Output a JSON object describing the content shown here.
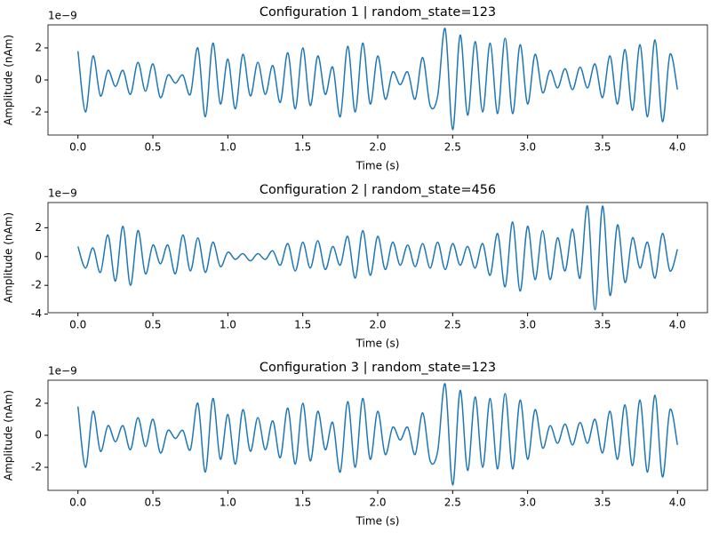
{
  "chart_data": [
    {
      "type": "line",
      "title": "Configuration 1 | random_state=123",
      "x_label": "Time (s)",
      "y_label": "Amplitude (nAm)",
      "y_offset_label": "1e−9",
      "x": [
        0,
        0.05,
        0.1,
        0.15,
        0.2,
        0.25,
        0.3,
        0.35,
        0.4,
        0.45,
        0.5,
        0.55,
        0.6,
        0.65,
        0.7,
        0.75,
        0.8,
        0.85,
        0.9,
        0.95,
        1.0,
        1.05,
        1.1,
        1.15,
        1.2,
        1.25,
        1.3,
        1.35,
        1.4,
        1.45,
        1.5,
        1.55,
        1.6,
        1.65,
        1.7,
        1.75,
        1.8,
        1.85,
        1.9,
        1.95,
        2.0,
        2.05,
        2.1,
        2.15,
        2.2,
        2.25,
        2.3,
        2.35,
        2.4,
        2.45,
        2.5,
        2.55,
        2.6,
        2.65,
        2.7,
        2.75,
        2.8,
        2.85,
        2.9,
        2.95,
        3.0,
        3.05,
        3.1,
        3.15,
        3.2,
        3.25,
        3.3,
        3.35,
        3.4,
        3.45,
        3.5,
        3.55,
        3.6,
        3.65,
        3.7,
        3.75,
        3.8,
        3.85,
        3.9,
        3.95,
        4.0
      ],
      "series": [
        {
          "color": "#1f77b4",
          "values": [
            1.8,
            -2.0,
            1.5,
            -1.0,
            0.6,
            -0.4,
            0.6,
            -0.9,
            1.1,
            -0.7,
            1.0,
            -1.1,
            0.3,
            -0.2,
            0.3,
            -0.9,
            2.0,
            -2.3,
            2.3,
            -1.5,
            1.3,
            -1.8,
            1.6,
            -1.0,
            1.1,
            -0.9,
            0.9,
            -1.4,
            1.7,
            -1.8,
            2.0,
            -1.6,
            1.5,
            -0.9,
            0.8,
            -2.3,
            2.1,
            -2.0,
            2.3,
            -1.5,
            1.5,
            -1.2,
            0.5,
            -0.3,
            0.5,
            -1.2,
            1.4,
            -1.6,
            -1.0,
            3.2,
            -3.1,
            2.8,
            -2.2,
            2.4,
            -2.0,
            2.3,
            -2.1,
            2.6,
            -2.1,
            2.2,
            -1.5,
            1.6,
            -0.8,
            0.6,
            -0.5,
            0.7,
            -0.6,
            0.8,
            -0.5,
            1.0,
            -1.1,
            1.5,
            -1.5,
            1.9,
            -1.9,
            2.2,
            -2.3,
            2.5,
            -2.6,
            1.6,
            -0.6
          ]
        }
      ],
      "xlim": [
        -0.2,
        4.2
      ],
      "ylim": [
        -3.44,
        3.44
      ],
      "xticks": [
        {
          "value": 0,
          "label": "0.0"
        },
        {
          "value": 0.5,
          "label": "0.5"
        },
        {
          "value": 1,
          "label": "1.0"
        },
        {
          "value": 1.5,
          "label": "1.5"
        },
        {
          "value": 2,
          "label": "2.0"
        },
        {
          "value": 2.5,
          "label": "2.5"
        },
        {
          "value": 3,
          "label": "3.0"
        },
        {
          "value": 3.5,
          "label": "3.5"
        },
        {
          "value": 4,
          "label": "4.0"
        }
      ],
      "yticks": [
        -2,
        0,
        2
      ]
    },
    {
      "type": "line",
      "title": "Configuration 2 | random_state=456",
      "x_label": "Time (s)",
      "y_label": "Amplitude (nAm)",
      "y_offset_label": "1e−9",
      "x": [
        0,
        0.05,
        0.1,
        0.15,
        0.2,
        0.25,
        0.3,
        0.35,
        0.4,
        0.45,
        0.5,
        0.55,
        0.6,
        0.65,
        0.7,
        0.75,
        0.8,
        0.85,
        0.9,
        0.95,
        1.0,
        1.05,
        1.1,
        1.15,
        1.2,
        1.25,
        1.3,
        1.35,
        1.4,
        1.45,
        1.5,
        1.55,
        1.6,
        1.65,
        1.7,
        1.75,
        1.8,
        1.85,
        1.9,
        1.95,
        2.0,
        2.05,
        2.1,
        2.15,
        2.2,
        2.25,
        2.3,
        2.35,
        2.4,
        2.45,
        2.5,
        2.55,
        2.6,
        2.65,
        2.7,
        2.75,
        2.8,
        2.85,
        2.9,
        2.95,
        3.0,
        3.05,
        3.1,
        3.15,
        3.2,
        3.25,
        3.3,
        3.35,
        3.4,
        3.45,
        3.5,
        3.55,
        3.6,
        3.65,
        3.7,
        3.75,
        3.8,
        3.85,
        3.9,
        3.95,
        4.0
      ],
      "series": [
        {
          "color": "#1f77b4",
          "values": [
            0.7,
            -0.8,
            0.6,
            -1.1,
            1.5,
            -1.7,
            2.1,
            -2.0,
            1.8,
            -1.2,
            0.8,
            -0.5,
            0.8,
            -1.2,
            1.5,
            -1.0,
            1.3,
            -1.1,
            1.0,
            -0.7,
            0.3,
            -0.2,
            0.2,
            -0.3,
            0.2,
            -0.2,
            0.4,
            -0.6,
            0.9,
            -1.0,
            1.0,
            -0.8,
            1.1,
            -0.9,
            0.7,
            -0.6,
            1.4,
            -1.5,
            1.8,
            -1.3,
            1.4,
            -0.9,
            1.0,
            -0.6,
            0.8,
            -0.7,
            0.9,
            -0.8,
            1.0,
            -0.9,
            0.9,
            -0.6,
            0.7,
            -0.8,
            0.9,
            -1.3,
            1.6,
            -2.1,
            2.4,
            -2.4,
            2.1,
            -1.6,
            1.8,
            -1.6,
            1.3,
            -1.0,
            1.9,
            -1.5,
            3.5,
            -3.7,
            3.5,
            -2.7,
            2.2,
            -1.8,
            1.3,
            -0.8,
            1.0,
            -1.5,
            1.6,
            -1.0,
            0.5
          ]
        }
      ],
      "xlim": [
        -0.2,
        4.2
      ],
      "ylim": [
        -3.9,
        3.75
      ],
      "xticks": [
        {
          "value": 0,
          "label": "0.0"
        },
        {
          "value": 0.5,
          "label": "0.5"
        },
        {
          "value": 1,
          "label": "1.0"
        },
        {
          "value": 1.5,
          "label": "1.5"
        },
        {
          "value": 2,
          "label": "2.0"
        },
        {
          "value": 2.5,
          "label": "2.5"
        },
        {
          "value": 3,
          "label": "3.0"
        },
        {
          "value": 3.5,
          "label": "3.5"
        },
        {
          "value": 4,
          "label": "4.0"
        }
      ],
      "yticks": [
        -4,
        -2,
        0,
        2
      ]
    },
    {
      "type": "line",
      "title": "Configuration 3 | random_state=123",
      "x_label": "Time (s)",
      "y_label": "Amplitude (nAm)",
      "y_offset_label": "1e−9",
      "x": [
        0,
        0.05,
        0.1,
        0.15,
        0.2,
        0.25,
        0.3,
        0.35,
        0.4,
        0.45,
        0.5,
        0.55,
        0.6,
        0.65,
        0.7,
        0.75,
        0.8,
        0.85,
        0.9,
        0.95,
        1.0,
        1.05,
        1.1,
        1.15,
        1.2,
        1.25,
        1.3,
        1.35,
        1.4,
        1.45,
        1.5,
        1.55,
        1.6,
        1.65,
        1.7,
        1.75,
        1.8,
        1.85,
        1.9,
        1.95,
        2.0,
        2.05,
        2.1,
        2.15,
        2.2,
        2.25,
        2.3,
        2.35,
        2.4,
        2.45,
        2.5,
        2.55,
        2.6,
        2.65,
        2.7,
        2.75,
        2.8,
        2.85,
        2.9,
        2.95,
        3.0,
        3.05,
        3.1,
        3.15,
        3.2,
        3.25,
        3.3,
        3.35,
        3.4,
        3.45,
        3.5,
        3.55,
        3.6,
        3.65,
        3.7,
        3.75,
        3.8,
        3.85,
        3.9,
        3.95,
        4.0
      ],
      "series": [
        {
          "color": "#1f77b4",
          "values": [
            1.8,
            -2.0,
            1.5,
            -1.0,
            0.6,
            -0.4,
            0.6,
            -0.9,
            1.1,
            -0.7,
            1.0,
            -1.1,
            0.3,
            -0.2,
            0.3,
            -0.9,
            2.0,
            -2.3,
            2.3,
            -1.5,
            1.3,
            -1.8,
            1.6,
            -1.0,
            1.1,
            -0.9,
            0.9,
            -1.4,
            1.7,
            -1.8,
            2.0,
            -1.6,
            1.5,
            -0.9,
            0.8,
            -2.3,
            2.1,
            -2.0,
            2.3,
            -1.5,
            1.5,
            -1.2,
            0.5,
            -0.3,
            0.5,
            -1.2,
            1.4,
            -1.6,
            -1.0,
            3.2,
            -3.1,
            2.8,
            -2.2,
            2.4,
            -2.0,
            2.3,
            -2.1,
            2.6,
            -2.1,
            2.2,
            -1.5,
            1.6,
            -0.8,
            0.6,
            -0.5,
            0.7,
            -0.6,
            0.8,
            -0.5,
            1.0,
            -1.1,
            1.5,
            -1.5,
            1.9,
            -1.9,
            2.2,
            -2.3,
            2.5,
            -2.6,
            1.6,
            -0.6
          ]
        }
      ],
      "xlim": [
        -0.2,
        4.2
      ],
      "ylim": [
        -3.44,
        3.44
      ],
      "xticks": [
        {
          "value": 0,
          "label": "0.0"
        },
        {
          "value": 0.5,
          "label": "0.5"
        },
        {
          "value": 1,
          "label": "1.0"
        },
        {
          "value": 1.5,
          "label": "1.5"
        },
        {
          "value": 2,
          "label": "2.0"
        },
        {
          "value": 2.5,
          "label": "2.5"
        },
        {
          "value": 3,
          "label": "3.0"
        },
        {
          "value": 3.5,
          "label": "3.5"
        },
        {
          "value": 4,
          "label": "4.0"
        }
      ],
      "yticks": [
        -2,
        0,
        2
      ]
    }
  ]
}
